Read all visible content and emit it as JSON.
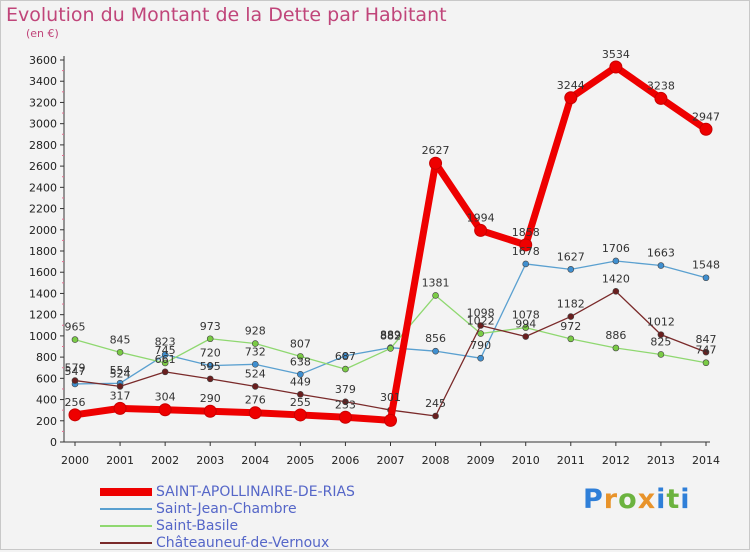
{
  "chart": {
    "title": "Evolution du Montant de la Dette par Habitant",
    "unit": "(en €)"
  },
  "brand": {
    "text": "Proxiti",
    "letters": [
      {
        "ch": "P",
        "color": "#2f7fd8"
      },
      {
        "ch": "r",
        "color": "#e8932a"
      },
      {
        "ch": "o",
        "color": "#6cb33f"
      },
      {
        "ch": "x",
        "color": "#e8932a"
      },
      {
        "ch": "i",
        "color": "#2f7fd8"
      },
      {
        "ch": "t",
        "color": "#6cb33f"
      },
      {
        "ch": "i",
        "color": "#2f7fd8"
      }
    ]
  },
  "chart_data": {
    "type": "line",
    "title": "Evolution du Montant de la Dette par Habitant",
    "ylabel": "(en €)",
    "xlabel": "",
    "x": [
      "2000",
      "2001",
      "2002",
      "2003",
      "2004",
      "2005",
      "2006",
      "2007",
      "2008",
      "2009",
      "2010",
      "2011",
      "2012",
      "2013",
      "2014"
    ],
    "ylim": [
      0,
      3600
    ],
    "yticks": [
      0,
      200,
      400,
      600,
      800,
      1000,
      1200,
      1400,
      1600,
      1800,
      2000,
      2200,
      2400,
      2600,
      2800,
      3000,
      3200,
      3400,
      3600
    ],
    "grid": false,
    "legend_position": "bottom-left",
    "series": [
      {
        "name": "SAINT-APOLLINAIRE-DE-RIAS",
        "color": "#ee0000",
        "marker_color": "#ee0000",
        "emphasis": true,
        "values": [
          256,
          317,
          304,
          290,
          276,
          255,
          233,
          204,
          2627,
          1994,
          1858,
          3244,
          3534,
          3238,
          2947
        ],
        "labels": [
          "256",
          "317",
          "304",
          "290",
          "276",
          "255",
          "233",
          "",
          "2627",
          "1994",
          "1858",
          "3244",
          "3534",
          "3238",
          "2947"
        ]
      },
      {
        "name": "Saint-Jean-Chambre",
        "color": "#5aa0d0",
        "marker_color": "#3f8fd0",
        "values": [
          547,
          554,
          823,
          720,
          732,
          638,
          813,
          889,
          856,
          790,
          1678,
          1627,
          1706,
          1663,
          1548
        ],
        "labels": [
          "547",
          "554",
          "823",
          "720",
          "732",
          "638",
          "",
          "889",
          "856",
          "790",
          "1678",
          "1627",
          "1706",
          "1663",
          "1548"
        ]
      },
      {
        "name": "Saint-Basile",
        "color": "#8fd870",
        "marker_color": "#7acb45",
        "values": [
          965,
          845,
          745,
          973,
          928,
          807,
          687,
          882,
          1381,
          1022,
          1078,
          972,
          886,
          825,
          747
        ],
        "labels": [
          "965",
          "845",
          "745",
          "973",
          "928",
          "807",
          "687",
          "882",
          "1381",
          "1022",
          "1078",
          "972",
          "886",
          "825",
          "747"
        ]
      },
      {
        "name": "Châteauneuf-de-Vernoux",
        "color": "#7a2a2a",
        "marker_color": "#6a1f1f",
        "values": [
          579,
          524,
          661,
          595,
          524,
          449,
          379,
          301,
          245,
          1098,
          994,
          1182,
          1420,
          1012,
          847
        ],
        "labels": [
          "579",
          "524",
          "661",
          "595",
          "524",
          "449",
          "379",
          "301",
          "245",
          "1098",
          "994",
          "1182",
          "1420",
          "1012",
          "847"
        ]
      }
    ]
  }
}
